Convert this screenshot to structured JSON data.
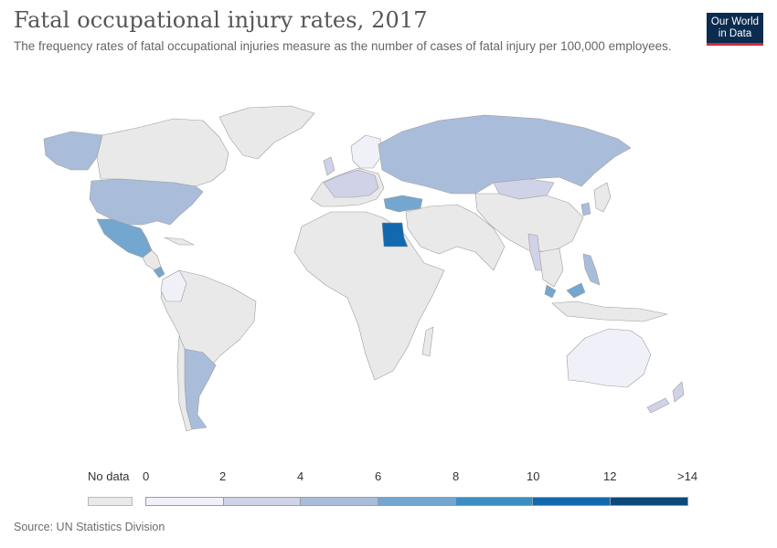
{
  "header": {
    "title": "Fatal occupational injury rates, 2017",
    "subtitle": "The frequency rates of fatal occupational injuries measure as the number of cases of fatal injury per 100,000 employees.",
    "logo_line1": "Our World",
    "logo_line2": "in Data"
  },
  "legend": {
    "nodata_label": "No data",
    "tick_labels": [
      "0",
      "2",
      "4",
      "6",
      "8",
      "10",
      "12",
      ">14"
    ],
    "bin_colors": [
      "#eff0f8",
      "#d0d2e8",
      "#a9bddb",
      "#74a7cf",
      "#3a8ec3",
      "#1269ad",
      "#0c4a7c"
    ],
    "nodata_color": "#e9e9e9"
  },
  "map_data": {
    "type": "choropleth",
    "year": 2017,
    "colored_countries": [
      {
        "country": "United States",
        "bin": "4-6"
      },
      {
        "country": "Canada (Alaska)",
        "bin": "4-6"
      },
      {
        "country": "Mexico",
        "bin": "6-8"
      },
      {
        "country": "Argentina",
        "bin": "4-6"
      },
      {
        "country": "Colombia",
        "bin": "0-2"
      },
      {
        "country": "Costa Rica",
        "bin": "6-8"
      },
      {
        "country": "Russia",
        "bin": "4-6"
      },
      {
        "country": "Mongolia",
        "bin": "2-4"
      },
      {
        "country": "Turkey",
        "bin": "6-8"
      },
      {
        "country": "Egypt",
        "bin": "10-12"
      },
      {
        "country": "Myanmar",
        "bin": "2-4"
      },
      {
        "country": "Malaysia",
        "bin": "6-8"
      },
      {
        "country": "Philippines",
        "bin": "4-6"
      },
      {
        "country": "Australia",
        "bin": "0-2"
      },
      {
        "country": "New Zealand",
        "bin": "2-4"
      },
      {
        "country": "Europe (various)",
        "bin": "0-4"
      }
    ]
  },
  "footer": {
    "source": "Source: UN Statistics Division"
  }
}
